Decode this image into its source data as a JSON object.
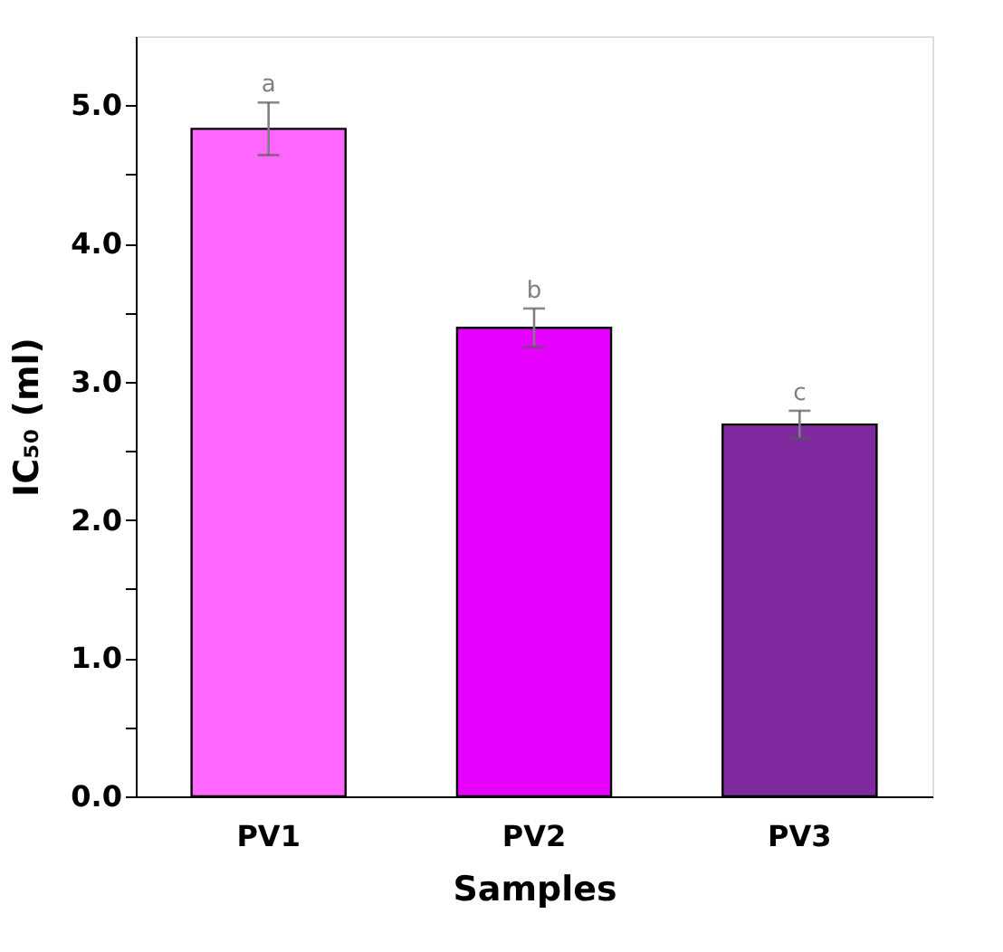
{
  "chart_data": {
    "type": "bar",
    "xlabel": "Samples",
    "ylabel": "IC₅₀ (ml)",
    "categories": [
      "PV1",
      "PV2",
      "PV3"
    ],
    "values": [
      4.83,
      3.39,
      2.69
    ],
    "colors": [
      "#ff66ff",
      "#e600ff",
      "#7f2a9e"
    ],
    "errors": [
      0.19,
      0.14,
      0.1
    ],
    "ylim": [
      0,
      5.5
    ],
    "yticks": [
      {
        "value": 0,
        "label": "0.0"
      },
      {
        "value": 0.5,
        "label": null
      },
      {
        "value": 1,
        "label": "1.0"
      },
      {
        "value": 1.5,
        "label": null
      },
      {
        "value": 2,
        "label": "2.0"
      },
      {
        "value": 2.5,
        "label": null
      },
      {
        "value": 3,
        "label": "3.0"
      },
      {
        "value": 3.5,
        "label": null
      },
      {
        "value": 4,
        "label": "4.0"
      },
      {
        "value": 4.5,
        "label": null
      },
      {
        "value": 5,
        "label": "5.0"
      }
    ],
    "annotations": [
      {
        "text": "a",
        "x": "PV1",
        "y": 5.02
      },
      {
        "text": "b",
        "x": "PV2",
        "y": 3.53
      },
      {
        "text": "c",
        "x": "PV3",
        "y": 2.79
      }
    ],
    "grid": false,
    "legend": false
  }
}
